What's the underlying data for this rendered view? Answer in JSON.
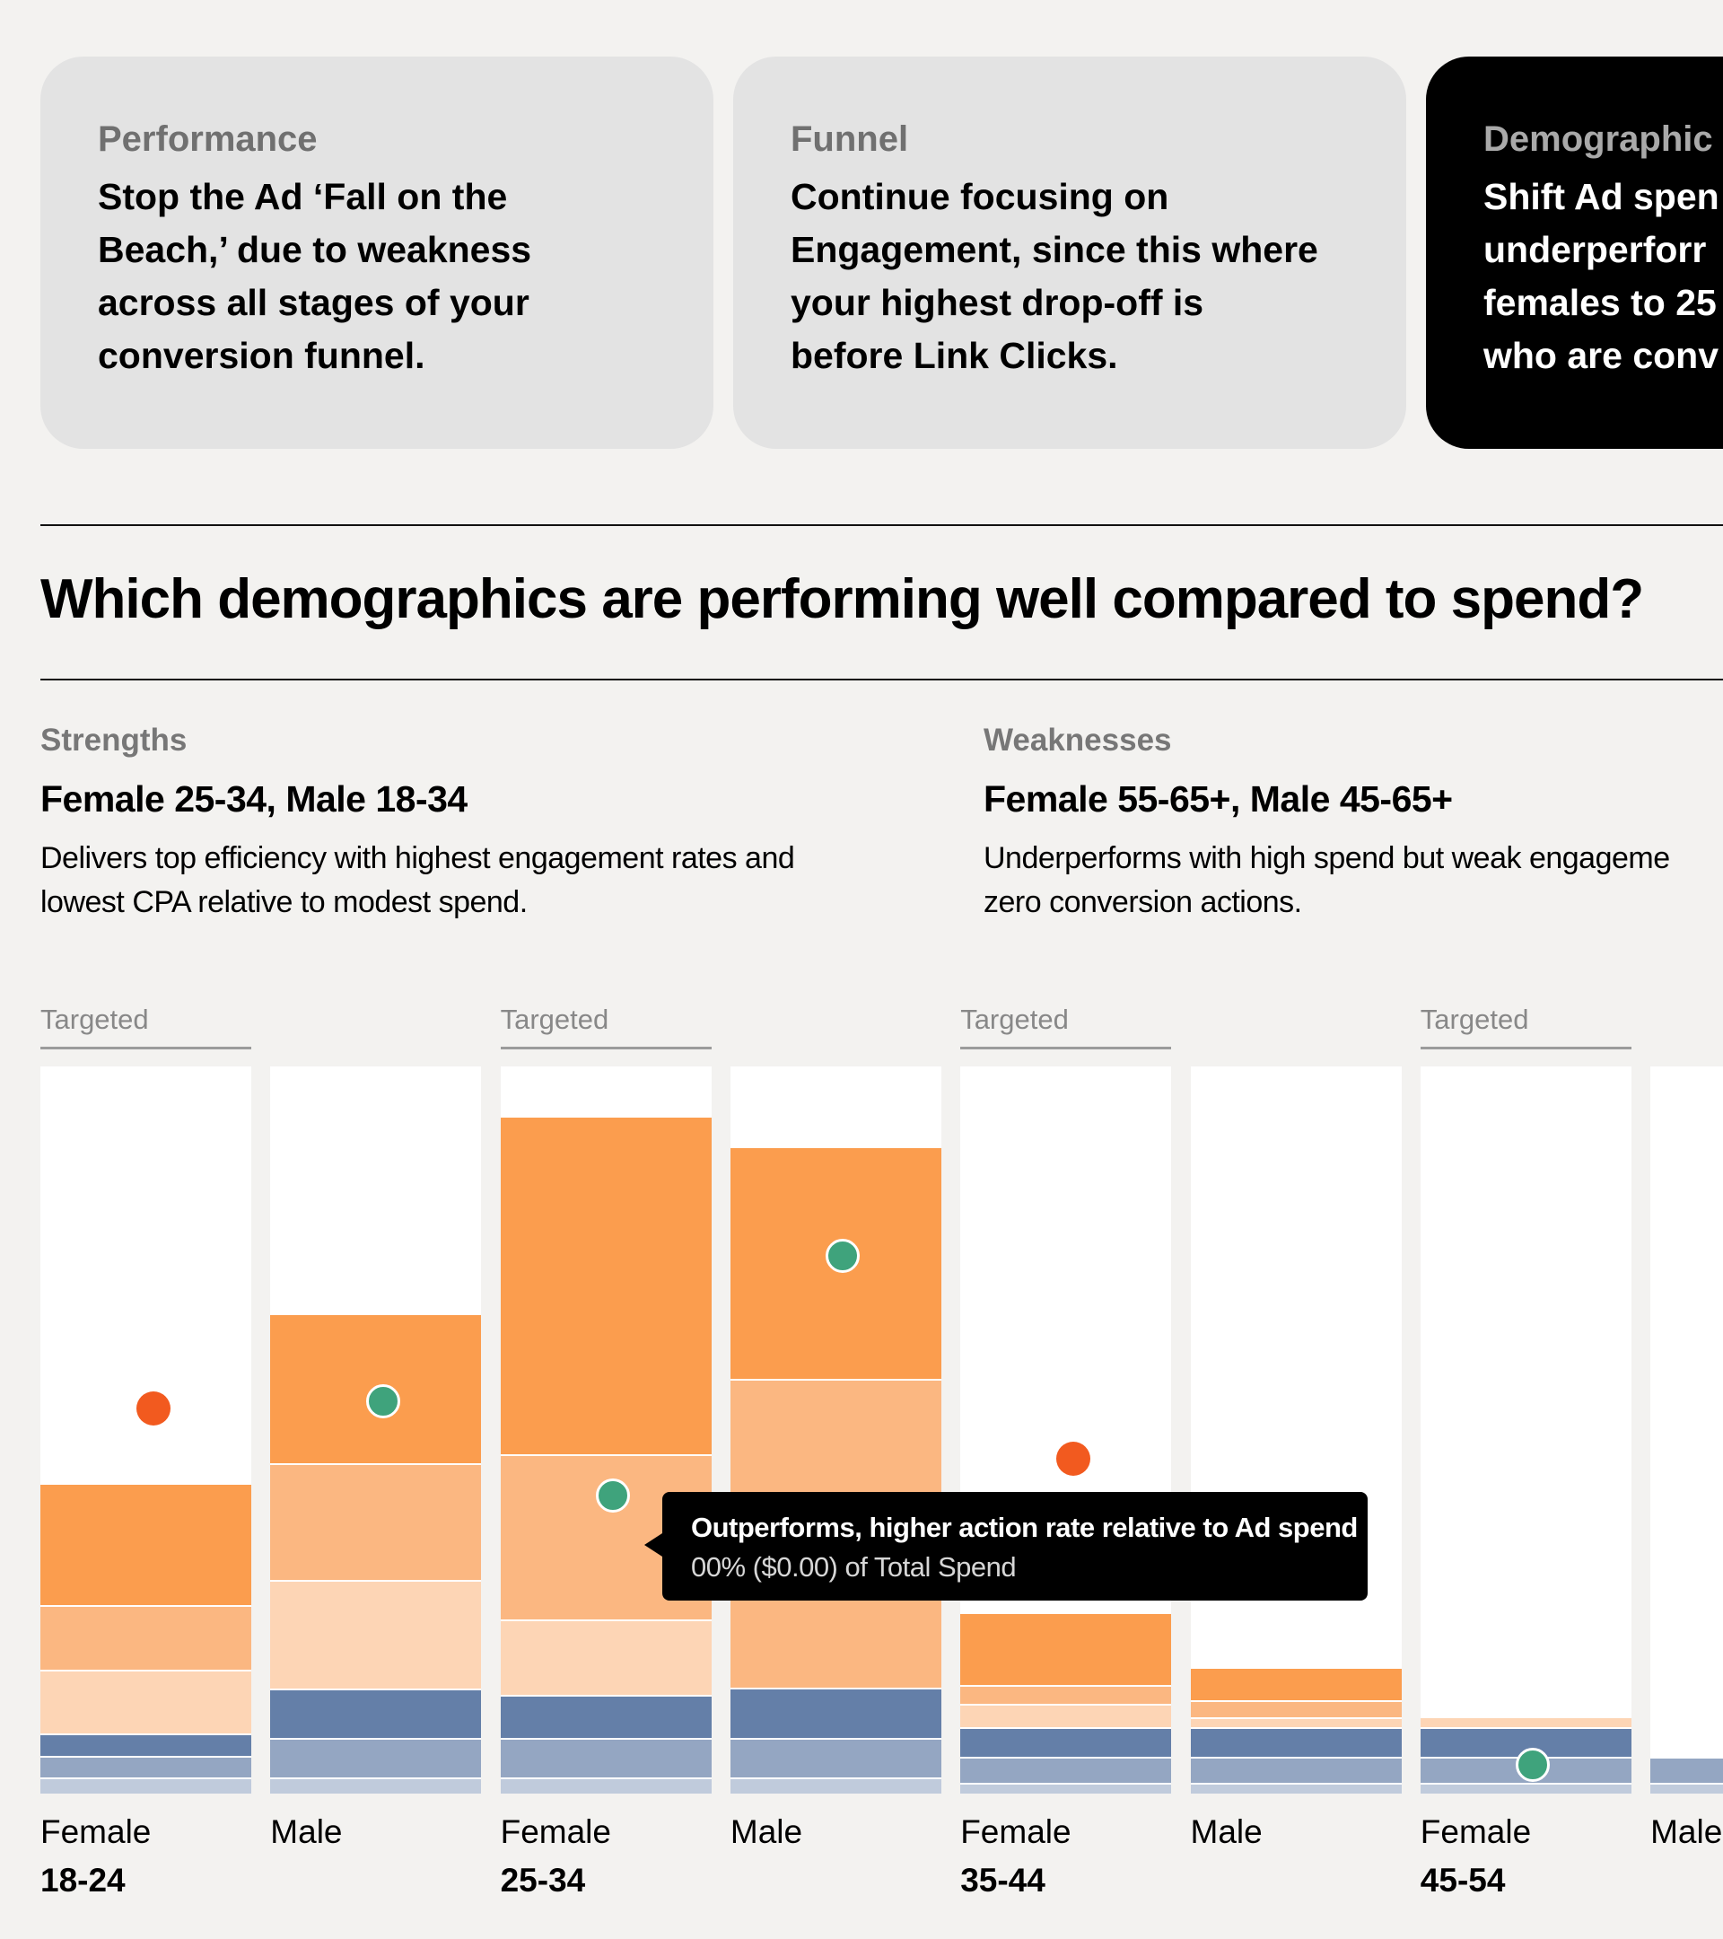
{
  "cards": [
    {
      "category": "Performance",
      "lines": [
        "Stop the Ad ‘Fall on the",
        "Beach,’ due to weakness",
        "across all stages of your",
        "conversion funnel."
      ]
    },
    {
      "category": "Funnel",
      "lines": [
        "Continue focusing on",
        "Engagement, since this where",
        "your highest drop-off is",
        "before Link Clicks."
      ]
    },
    {
      "category": "Demographic",
      "lines": [
        "Shift Ad spen",
        "underperforr",
        "females to 25",
        "who are conv"
      ]
    }
  ],
  "section": {
    "title": "Which demographics are performing well compared to spend?"
  },
  "strengths": {
    "label": "Strengths",
    "headline": "Female 25-34, Male 18-34",
    "desc_lines": [
      "Delivers top efficiency with highest engagement rates and",
      "lowest CPA relative to modest spend."
    ]
  },
  "weaknesses": {
    "label": "Weaknesses",
    "headline": "Female 55-65+, Male 45-65+",
    "desc_lines": [
      "Underperforms with high spend but weak engageme",
      "zero conversion actions."
    ]
  },
  "targeted_label": "Targeted",
  "tooltip": {
    "title": "Outperforms, higher action rate relative to Ad spend",
    "subtitle": "00% ($0.00) of Total Spend"
  },
  "colors": {
    "orange_1": "#fb9d4e",
    "orange_2": "#fbb781",
    "orange_3": "#fdd5b5",
    "blue_1": "#647fa8",
    "blue_2": "#94a6c2",
    "blue_3": "#c0cbdc",
    "dot_under": "#f25a1f",
    "dot_over": "#3fa37c"
  },
  "chart_data": {
    "type": "bar",
    "stacked": true,
    "ylim": [
      0,
      1
    ],
    "segment_order": [
      "orange_1",
      "orange_2",
      "orange_3",
      "blue_1",
      "blue_2",
      "blue_3"
    ],
    "groups": [
      {
        "gender": "Female",
        "age": "18-24",
        "targeted": true,
        "segments": [
          0.168,
          0.088,
          0.088,
          0.031,
          0.03,
          0.022
        ],
        "marker": {
          "type": "under",
          "value": 0.53
        }
      },
      {
        "gender": "Male",
        "age": "",
        "targeted": false,
        "segments": [
          0.206,
          0.16,
          0.149,
          0.069,
          0.054,
          0.022
        ],
        "marker": {
          "type": "over",
          "value": 0.54
        }
      },
      {
        "gender": "Female",
        "age": "25-34",
        "targeted": true,
        "segments": [
          0.465,
          0.227,
          0.104,
          0.06,
          0.054,
          0.022
        ],
        "marker": {
          "type": "over",
          "value": 0.41
        }
      },
      {
        "gender": "Male",
        "age": "",
        "targeted": false,
        "segments": [
          0.319,
          0.425,
          0.0,
          0.07,
          0.054,
          0.022
        ],
        "marker": {
          "type": "over",
          "value": 0.74
        }
      },
      {
        "gender": "Female",
        "age": "35-44",
        "targeted": true,
        "segments": [
          0.099,
          0.026,
          0.033,
          0.04,
          0.036,
          0.015
        ],
        "marker": {
          "type": "under",
          "value": 0.46
        }
      },
      {
        "gender": "Male",
        "age": "",
        "targeted": false,
        "segments": [
          0.045,
          0.024,
          0.014,
          0.04,
          0.036,
          0.015
        ],
        "marker": null
      },
      {
        "gender": "Female",
        "age": "45-54",
        "targeted": true,
        "segments": [
          0.0,
          0.0,
          0.015,
          0.04,
          0.036,
          0.015
        ],
        "marker": {
          "type": "over",
          "value": 0.04
        }
      },
      {
        "gender": "Male",
        "age": "",
        "targeted": false,
        "segments": [
          0.0,
          0.0,
          0.0,
          0.0,
          0.036,
          0.015
        ],
        "marker": null
      }
    ]
  }
}
